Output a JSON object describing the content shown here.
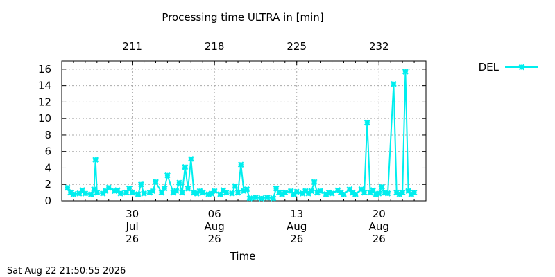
{
  "chart_data": {
    "type": "line",
    "title": "Processing time ULTRA in [min]",
    "xlabel": "Time",
    "ylabel": "",
    "ylim": [
      0,
      17
    ],
    "yticks": [
      0,
      2,
      4,
      6,
      8,
      10,
      12,
      14,
      16
    ],
    "xlim": [
      "2026-07-24",
      "2026-08-24"
    ],
    "x_ticks": [
      {
        "date": "2026-07-30",
        "line1": "30",
        "line2": "Jul",
        "line3": "26"
      },
      {
        "date": "2026-08-06",
        "line1": "06",
        "line2": "Aug",
        "line3": "26"
      },
      {
        "date": "2026-08-13",
        "line1": "13",
        "line2": "Aug",
        "line3": "26"
      },
      {
        "date": "2026-08-20",
        "line1": "20",
        "line2": "Aug",
        "line3": "26"
      }
    ],
    "top_axis": {
      "ticks": [
        {
          "date": "2026-07-30",
          "label": "211"
        },
        {
          "date": "2026-08-06",
          "label": "218"
        },
        {
          "date": "2026-08-13",
          "label": "225"
        },
        {
          "date": "2026-08-20",
          "label": "232"
        }
      ]
    },
    "grid": true,
    "legend_position": "right-top",
    "series": [
      {
        "name": "DEL",
        "color": "#00eeee",
        "points": [
          [
            "2026-07-24 12:00",
            1.6
          ],
          [
            "2026-07-24 18:00",
            1.0
          ],
          [
            "2026-07-25 00:00",
            0.8
          ],
          [
            "2026-07-25 12:00",
            0.9
          ],
          [
            "2026-07-25 18:00",
            1.3
          ],
          [
            "2026-07-26 00:00",
            0.9
          ],
          [
            "2026-07-26 12:00",
            0.8
          ],
          [
            "2026-07-26 18:00",
            1.4
          ],
          [
            "2026-07-26 21:00",
            5.0
          ],
          [
            "2026-07-27 00:00",
            1.0
          ],
          [
            "2026-07-27 12:00",
            0.9
          ],
          [
            "2026-07-27 18:00",
            1.2
          ],
          [
            "2026-07-28 00:00",
            1.6
          ],
          [
            "2026-07-28 12:00",
            1.2
          ],
          [
            "2026-07-28 18:00",
            1.3
          ],
          [
            "2026-07-29 00:00",
            0.9
          ],
          [
            "2026-07-29 12:00",
            1.0
          ],
          [
            "2026-07-29 18:00",
            1.5
          ],
          [
            "2026-07-30 00:00",
            1.0
          ],
          [
            "2026-07-30 12:00",
            0.8
          ],
          [
            "2026-07-30 18:00",
            2.0
          ],
          [
            "2026-07-31 00:00",
            0.9
          ],
          [
            "2026-07-31 12:00",
            1.0
          ],
          [
            "2026-07-31 18:00",
            1.2
          ],
          [
            "2026-08-01 00:00",
            2.3
          ],
          [
            "2026-08-01 12:00",
            1.0
          ],
          [
            "2026-08-01 18:00",
            1.5
          ],
          [
            "2026-08-02 00:00",
            3.1
          ],
          [
            "2026-08-02 12:00",
            1.0
          ],
          [
            "2026-08-02 18:00",
            1.2
          ],
          [
            "2026-08-03 00:00",
            2.2
          ],
          [
            "2026-08-03 06:00",
            1.0
          ],
          [
            "2026-08-03 12:00",
            4.1
          ],
          [
            "2026-08-03 18:00",
            1.5
          ],
          [
            "2026-08-04 00:00",
            5.1
          ],
          [
            "2026-08-04 06:00",
            1.0
          ],
          [
            "2026-08-04 12:00",
            0.9
          ],
          [
            "2026-08-04 18:00",
            1.2
          ],
          [
            "2026-08-05 00:00",
            1.0
          ],
          [
            "2026-08-05 12:00",
            0.8
          ],
          [
            "2026-08-05 18:00",
            0.9
          ],
          [
            "2026-08-06 00:00",
            1.2
          ],
          [
            "2026-08-06 12:00",
            0.8
          ],
          [
            "2026-08-06 18:00",
            1.3
          ],
          [
            "2026-08-07 00:00",
            1.0
          ],
          [
            "2026-08-07 12:00",
            0.9
          ],
          [
            "2026-08-07 18:00",
            1.8
          ],
          [
            "2026-08-08 00:00",
            1.0
          ],
          [
            "2026-08-08 06:00",
            4.4
          ],
          [
            "2026-08-08 12:00",
            1.2
          ],
          [
            "2026-08-08 18:00",
            1.4
          ],
          [
            "2026-08-09 00:00",
            0.3
          ],
          [
            "2026-08-09 12:00",
            0.4
          ],
          [
            "2026-08-10 00:00",
            0.3
          ],
          [
            "2026-08-10 12:00",
            0.4
          ],
          [
            "2026-08-11 00:00",
            0.3
          ],
          [
            "2026-08-11 06:00",
            1.5
          ],
          [
            "2026-08-11 12:00",
            1.0
          ],
          [
            "2026-08-11 18:00",
            0.8
          ],
          [
            "2026-08-12 00:00",
            1.0
          ],
          [
            "2026-08-12 12:00",
            1.2
          ],
          [
            "2026-08-12 18:00",
            0.8
          ],
          [
            "2026-08-13 00:00",
            1.1
          ],
          [
            "2026-08-13 12:00",
            0.9
          ],
          [
            "2026-08-13 18:00",
            1.2
          ],
          [
            "2026-08-14 00:00",
            0.9
          ],
          [
            "2026-08-14 06:00",
            1.2
          ],
          [
            "2026-08-14 12:00",
            2.3
          ],
          [
            "2026-08-14 18:00",
            1.0
          ],
          [
            "2026-08-15 00:00",
            1.2
          ],
          [
            "2026-08-15 12:00",
            0.8
          ],
          [
            "2026-08-15 18:00",
            1.0
          ],
          [
            "2026-08-16 00:00",
            0.9
          ],
          [
            "2026-08-16 12:00",
            1.3
          ],
          [
            "2026-08-16 18:00",
            1.0
          ],
          [
            "2026-08-17 00:00",
            0.8
          ],
          [
            "2026-08-17 12:00",
            1.4
          ],
          [
            "2026-08-17 18:00",
            1.0
          ],
          [
            "2026-08-18 00:00",
            0.8
          ],
          [
            "2026-08-18 12:00",
            1.4
          ],
          [
            "2026-08-18 18:00",
            1.0
          ],
          [
            "2026-08-19 00:00",
            9.5
          ],
          [
            "2026-08-19 06:00",
            1.0
          ],
          [
            "2026-08-19 12:00",
            1.3
          ],
          [
            "2026-08-19 18:00",
            0.8
          ],
          [
            "2026-08-20 00:00",
            0.9
          ],
          [
            "2026-08-20 06:00",
            1.7
          ],
          [
            "2026-08-20 12:00",
            1.0
          ],
          [
            "2026-08-20 18:00",
            0.9
          ],
          [
            "2026-08-21 06:00",
            14.2
          ],
          [
            "2026-08-21 12:00",
            1.0
          ],
          [
            "2026-08-21 18:00",
            0.8
          ],
          [
            "2026-08-22 00:00",
            1.0
          ],
          [
            "2026-08-22 06:00",
            15.7
          ],
          [
            "2026-08-22 12:00",
            1.2
          ],
          [
            "2026-08-22 18:00",
            0.8
          ],
          [
            "2026-08-23 00:00",
            1.0
          ]
        ]
      }
    ]
  },
  "footer": {
    "timestamp": "Sat Aug 22 21:50:55 2026"
  }
}
